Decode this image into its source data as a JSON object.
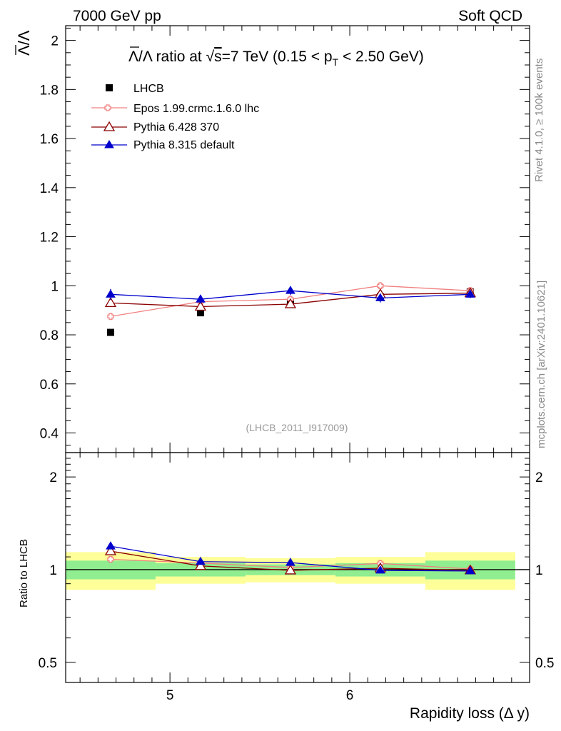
{
  "header": {
    "left": "7000 GeV pp",
    "right": "Soft QCD"
  },
  "side_labels": {
    "rivet": "Rivet 4.1.0, ≥ 100k events",
    "mcplots": "mcplots.cern.ch [arXiv:2401.10621]"
  },
  "chart_data": {
    "type": "line",
    "title": "Λ̄/Λ ratio at √s=7 TeV (0.15 < pT < 2.50 GeV)",
    "title_parts": {
      "ratio": "Λ/Λ ratio at ",
      "sqrt": "√",
      "s": "s",
      "energy": "=7 TeV (0.15 < p",
      "sub": "T",
      "range": " < 2.50 GeV)"
    },
    "analysis_id": "(LHCB_2011_I917009)",
    "ylabel_main": "Λ/Λ",
    "ylabel_ratio": "Ratio to LHCB",
    "xlabel": "Rapidity loss (Δ y)",
    "xlim": [
      4.42,
      7.0
    ],
    "ylim_main": [
      0.32,
      2.06
    ],
    "ylim_ratio": [
      0.43,
      2.4
    ],
    "x_ticks": [
      5,
      6
    ],
    "x_tick_labels": [
      "5",
      "6"
    ],
    "y_ticks_main": [
      0.4,
      0.6,
      0.8,
      1.0,
      1.2,
      1.4,
      1.6,
      1.8,
      2.0
    ],
    "y_tick_labels_main": [
      "0.4",
      "0.6",
      "0.8",
      "1",
      "1.2",
      "1.4",
      "1.6",
      "1.8",
      "2"
    ],
    "y_ticks_ratio": [
      0.5,
      1,
      2
    ],
    "y_tick_labels_ratio": [
      "0.5",
      "1",
      "2"
    ],
    "bins": [
      [
        4.42,
        4.92
      ],
      [
        4.92,
        5.42
      ],
      [
        5.42,
        5.92
      ],
      [
        5.92,
        6.42
      ],
      [
        6.42,
        6.92
      ]
    ],
    "x": [
      4.67,
      5.17,
      5.67,
      6.17,
      6.67
    ],
    "data": {
      "name": "LHCB",
      "color": "#000000",
      "values": [
        0.81,
        0.89,
        0.93,
        0.955,
        0.975
      ],
      "band_green": [
        0.07,
        0.05,
        0.04,
        0.05,
        0.07
      ],
      "band_yellow": [
        0.14,
        0.1,
        0.09,
        0.1,
        0.14
      ]
    },
    "series": [
      {
        "name": "Epos 1.99.crmc.1.6.0 lhc",
        "color": "#f08080",
        "marker": "open-cross",
        "values": [
          0.875,
          0.935,
          0.945,
          1.0,
          0.98
        ],
        "errors": [
          0.015,
          0.012,
          0.012,
          0.015,
          0.015
        ]
      },
      {
        "name": "Pythia 6.428 370",
        "color": "#8b0000",
        "marker": "open-triangle",
        "values": [
          0.93,
          0.915,
          0.925,
          0.965,
          0.97
        ],
        "errors": [
          0.015,
          0.012,
          0.012,
          0.012,
          0.012
        ]
      },
      {
        "name": "Pythia 8.315 default",
        "color": "#0000cc",
        "marker": "filled-triangle",
        "values": [
          0.965,
          0.945,
          0.98,
          0.95,
          0.965
        ],
        "errors": [
          0.022,
          0.018,
          0.018,
          0.018,
          0.015
        ]
      }
    ]
  }
}
